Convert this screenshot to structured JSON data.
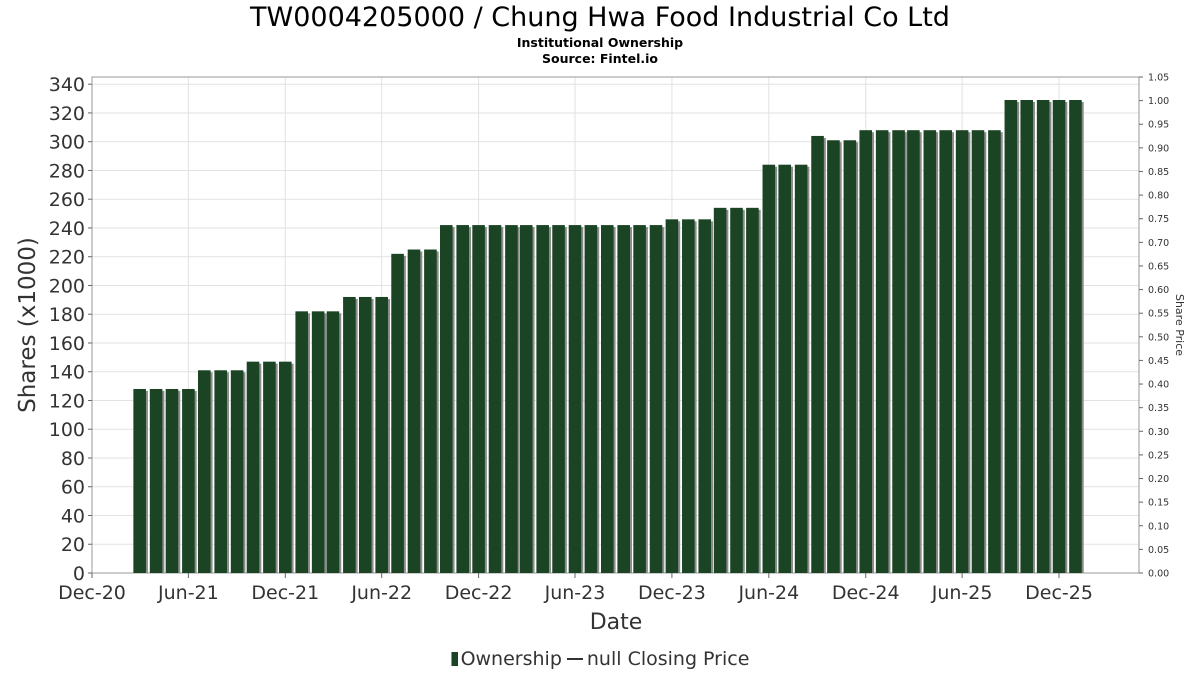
{
  "header": {
    "title": "TW0004205000 / Chung Hwa Food Industrial Co Ltd",
    "subtitle1": "Institutional Ownership",
    "subtitle2": "Source: Fintel.io"
  },
  "legend": {
    "ownership_label": "Ownership",
    "price_label": "null Closing Price"
  },
  "colors": {
    "bar": "#1a4424",
    "bar_shadow": "#8c8c8c",
    "grid": "#e2e2e2",
    "axis_text": "#333333"
  },
  "chart_data": {
    "type": "bar",
    "xlabel": "Date",
    "ylabel": "Shares (x1000)",
    "y2label": "Share Price",
    "ylim": [
      0,
      345
    ],
    "yticks": [
      0,
      20,
      40,
      60,
      80,
      100,
      120,
      140,
      160,
      180,
      200,
      220,
      240,
      260,
      280,
      300,
      320,
      340
    ],
    "y2lim": [
      0,
      1.05
    ],
    "y2ticks": [
      "0.00",
      "0.05",
      "0.10",
      "0.15",
      "0.20",
      "0.25",
      "0.30",
      "0.35",
      "0.40",
      "0.45",
      "0.50",
      "0.55",
      "0.60",
      "0.65",
      "0.70",
      "0.75",
      "0.80",
      "0.85",
      "0.90",
      "0.95",
      "1.00",
      "1.05"
    ],
    "xlim": [
      "2020-12-01",
      "2026-05-01"
    ],
    "xticks": [
      {
        "label": "Dec-20",
        "date": "2020-12-01"
      },
      {
        "label": "Jun-21",
        "date": "2021-06-01"
      },
      {
        "label": "Dec-21",
        "date": "2021-12-01"
      },
      {
        "label": "Jun-22",
        "date": "2022-06-01"
      },
      {
        "label": "Dec-22",
        "date": "2022-12-01"
      },
      {
        "label": "Jun-23",
        "date": "2023-06-01"
      },
      {
        "label": "Dec-23",
        "date": "2023-12-01"
      },
      {
        "label": "Jun-24",
        "date": "2024-06-01"
      },
      {
        "label": "Dec-24",
        "date": "2024-12-01"
      },
      {
        "label": "Jun-25",
        "date": "2025-06-01"
      },
      {
        "label": "Dec-25",
        "date": "2025-12-01"
      }
    ],
    "grid": true,
    "legend_position": "bottom",
    "series": [
      {
        "name": "Ownership",
        "points": [
          {
            "x": "2021-03-01",
            "y": 128
          },
          {
            "x": "2021-04-01",
            "y": 128
          },
          {
            "x": "2021-05-01",
            "y": 128
          },
          {
            "x": "2021-06-01",
            "y": 128
          },
          {
            "x": "2021-07-01",
            "y": 141
          },
          {
            "x": "2021-08-01",
            "y": 141
          },
          {
            "x": "2021-09-01",
            "y": 141
          },
          {
            "x": "2021-10-01",
            "y": 147
          },
          {
            "x": "2021-11-01",
            "y": 147
          },
          {
            "x": "2021-12-01",
            "y": 147
          },
          {
            "x": "2022-01-01",
            "y": 182
          },
          {
            "x": "2022-02-01",
            "y": 182
          },
          {
            "x": "2022-03-01",
            "y": 182
          },
          {
            "x": "2022-04-01",
            "y": 192
          },
          {
            "x": "2022-05-01",
            "y": 192
          },
          {
            "x": "2022-06-01",
            "y": 192
          },
          {
            "x": "2022-07-01",
            "y": 222
          },
          {
            "x": "2022-08-01",
            "y": 225
          },
          {
            "x": "2022-09-01",
            "y": 225
          },
          {
            "x": "2022-10-01",
            "y": 242
          },
          {
            "x": "2022-11-01",
            "y": 242
          },
          {
            "x": "2022-12-01",
            "y": 242
          },
          {
            "x": "2023-01-01",
            "y": 242
          },
          {
            "x": "2023-02-01",
            "y": 242
          },
          {
            "x": "2023-03-01",
            "y": 242
          },
          {
            "x": "2023-04-01",
            "y": 242
          },
          {
            "x": "2023-05-01",
            "y": 242
          },
          {
            "x": "2023-06-01",
            "y": 242
          },
          {
            "x": "2023-07-01",
            "y": 242
          },
          {
            "x": "2023-08-01",
            "y": 242
          },
          {
            "x": "2023-09-01",
            "y": 242
          },
          {
            "x": "2023-10-01",
            "y": 242
          },
          {
            "x": "2023-11-01",
            "y": 242
          },
          {
            "x": "2023-12-01",
            "y": 246
          },
          {
            "x": "2024-01-01",
            "y": 246
          },
          {
            "x": "2024-02-01",
            "y": 246
          },
          {
            "x": "2024-03-01",
            "y": 254
          },
          {
            "x": "2024-04-01",
            "y": 254
          },
          {
            "x": "2024-05-01",
            "y": 254
          },
          {
            "x": "2024-06-01",
            "y": 284
          },
          {
            "x": "2024-07-01",
            "y": 284
          },
          {
            "x": "2024-08-01",
            "y": 284
          },
          {
            "x": "2024-09-01",
            "y": 304
          },
          {
            "x": "2024-10-01",
            "y": 301
          },
          {
            "x": "2024-11-01",
            "y": 301
          },
          {
            "x": "2024-12-01",
            "y": 308
          },
          {
            "x": "2025-01-01",
            "y": 308
          },
          {
            "x": "2025-02-01",
            "y": 308
          },
          {
            "x": "2025-03-01",
            "y": 308
          },
          {
            "x": "2025-04-01",
            "y": 308
          },
          {
            "x": "2025-05-01",
            "y": 308
          },
          {
            "x": "2025-06-01",
            "y": 308
          },
          {
            "x": "2025-07-01",
            "y": 308
          },
          {
            "x": "2025-08-01",
            "y": 308
          },
          {
            "x": "2025-09-01",
            "y": 329
          },
          {
            "x": "2025-10-01",
            "y": 329
          },
          {
            "x": "2025-11-01",
            "y": 329
          },
          {
            "x": "2025-12-01",
            "y": 329
          },
          {
            "x": "2026-01-01",
            "y": 329
          }
        ]
      }
    ]
  }
}
